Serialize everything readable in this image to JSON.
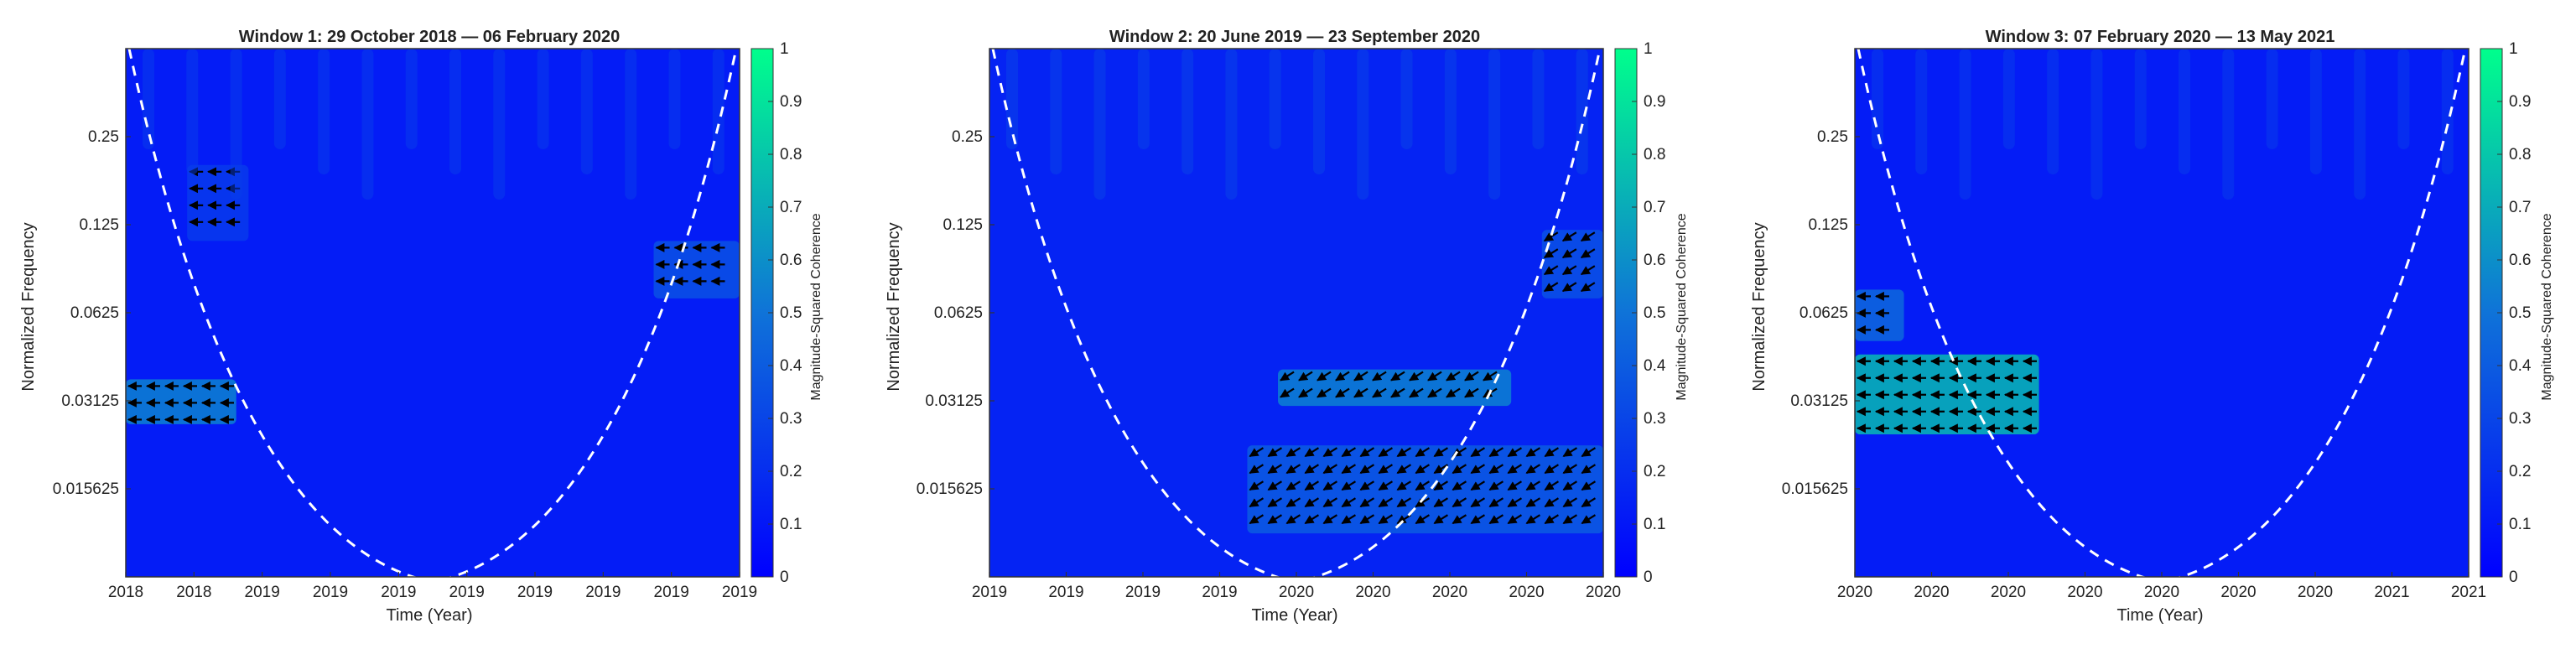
{
  "colors": {
    "low": "#0000ff",
    "high": "#00ff8c",
    "arrow": "#000000",
    "cone": "#ffffff"
  },
  "chart_data": [
    {
      "type": "heatmap",
      "title": "Window 1: 29 October 2018 — 06 February 2020",
      "xlabel": "Time (Year)",
      "ylabel": "Normalized Frequency",
      "x_tick_labels": [
        "2018",
        "2018",
        "2019",
        "2019",
        "2019",
        "2019",
        "2019",
        "2019",
        "2019",
        "2019"
      ],
      "y_ticks": [
        0.25,
        0.125,
        0.0625,
        0.03125,
        0.015625
      ],
      "y_tick_labels": [
        "0.25",
        "0.125",
        "0.0625",
        "0.03125",
        "0.015625"
      ],
      "ylim": [
        0.0078125,
        0.5
      ],
      "y_scale": "log2",
      "colorbar": {
        "label": "Magnitude-Squared Coherence",
        "ticks": [
          "0",
          "0.1",
          "0.2",
          "0.3",
          "0.4",
          "0.5",
          "0.6",
          "0.7",
          "0.8",
          "0.9",
          "1"
        ],
        "range": [
          0,
          1
        ]
      },
      "coherent_regions": [
        {
          "t": [
            0.0,
            0.18
          ],
          "f": [
            0.026,
            0.037
          ],
          "value": 0.55
        },
        {
          "t": [
            0.1,
            0.2
          ],
          "f": [
            0.11,
            0.2
          ],
          "value": 0.25
        },
        {
          "t": [
            0.86,
            1.0
          ],
          "f": [
            0.07,
            0.11
          ],
          "value": 0.35
        }
      ],
      "base_level": 0.12
    },
    {
      "type": "heatmap",
      "title": "Window 2: 20 June 2019 — 23 September 2020",
      "xlabel": "Time (Year)",
      "ylabel": "Normalized Frequency",
      "x_tick_labels": [
        "2019",
        "2019",
        "2019",
        "2019",
        "2020",
        "2020",
        "2020",
        "2020",
        "2020"
      ],
      "y_ticks": [
        0.25,
        0.125,
        0.0625,
        0.03125,
        0.015625
      ],
      "y_tick_labels": [
        "0.25",
        "0.125",
        "0.0625",
        "0.03125",
        "0.015625"
      ],
      "ylim": [
        0.0078125,
        0.5
      ],
      "y_scale": "log2",
      "colorbar": {
        "label": "Magnitude-Squared Coherence",
        "ticks": [
          "0",
          "0.1",
          "0.2",
          "0.3",
          "0.4",
          "0.5",
          "0.6",
          "0.7",
          "0.8",
          "0.9",
          "1"
        ],
        "range": [
          0,
          1
        ]
      },
      "coherent_regions": [
        {
          "t": [
            0.47,
            0.85
          ],
          "f": [
            0.03,
            0.04
          ],
          "value": 0.55
        },
        {
          "t": [
            0.42,
            1.0
          ],
          "f": [
            0.011,
            0.022
          ],
          "value": 0.4
        },
        {
          "t": [
            0.9,
            1.0
          ],
          "f": [
            0.07,
            0.12
          ],
          "value": 0.35
        }
      ],
      "base_level": 0.15
    },
    {
      "type": "heatmap",
      "title": "Window 3: 07 February 2020 — 13 May 2021",
      "xlabel": "Time (Year)",
      "ylabel": "Normalized Frequency",
      "x_tick_labels": [
        "2020",
        "2020",
        "2020",
        "2020",
        "2020",
        "2020",
        "2020",
        "2021",
        "2021"
      ],
      "y_ticks": [
        0.25,
        0.125,
        0.0625,
        0.03125,
        0.015625
      ],
      "y_tick_labels": [
        "0.25",
        "0.125",
        "0.0625",
        "0.03125",
        "0.015625"
      ],
      "ylim": [
        0.0078125,
        0.5
      ],
      "y_scale": "log2",
      "colorbar": {
        "label": "Magnitude-Squared Coherence",
        "ticks": [
          "0",
          "0.1",
          "0.2",
          "0.3",
          "0.4",
          "0.5",
          "0.6",
          "0.7",
          "0.8",
          "0.9",
          "1"
        ],
        "range": [
          0,
          1
        ]
      },
      "coherent_regions": [
        {
          "t": [
            0.0,
            0.3
          ],
          "f": [
            0.024,
            0.045
          ],
          "value": 0.75
        },
        {
          "t": [
            0.0,
            0.08
          ],
          "f": [
            0.05,
            0.075
          ],
          "value": 0.45
        }
      ],
      "base_level": 0.12
    }
  ]
}
